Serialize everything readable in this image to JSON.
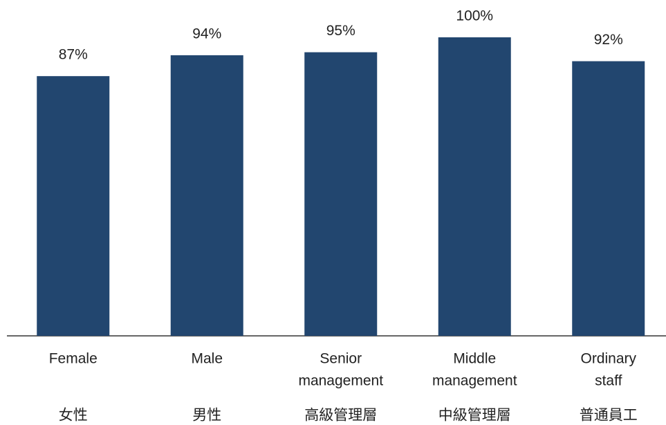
{
  "chart_data": {
    "type": "bar",
    "categories": [
      [
        "Female",
        "女性"
      ],
      [
        "Male",
        "男性"
      ],
      [
        "Senior",
        "management",
        "高級管理層"
      ],
      [
        "Middle",
        "management",
        "中級管理層"
      ],
      [
        "Ordinary",
        "staff",
        "普通員工"
      ]
    ],
    "values": [
      87,
      94,
      95,
      100,
      92
    ],
    "value_labels": [
      "87%",
      "94%",
      "95%",
      "100%",
      "92%"
    ],
    "color": "#22466f",
    "ylim": [
      0,
      100
    ]
  }
}
